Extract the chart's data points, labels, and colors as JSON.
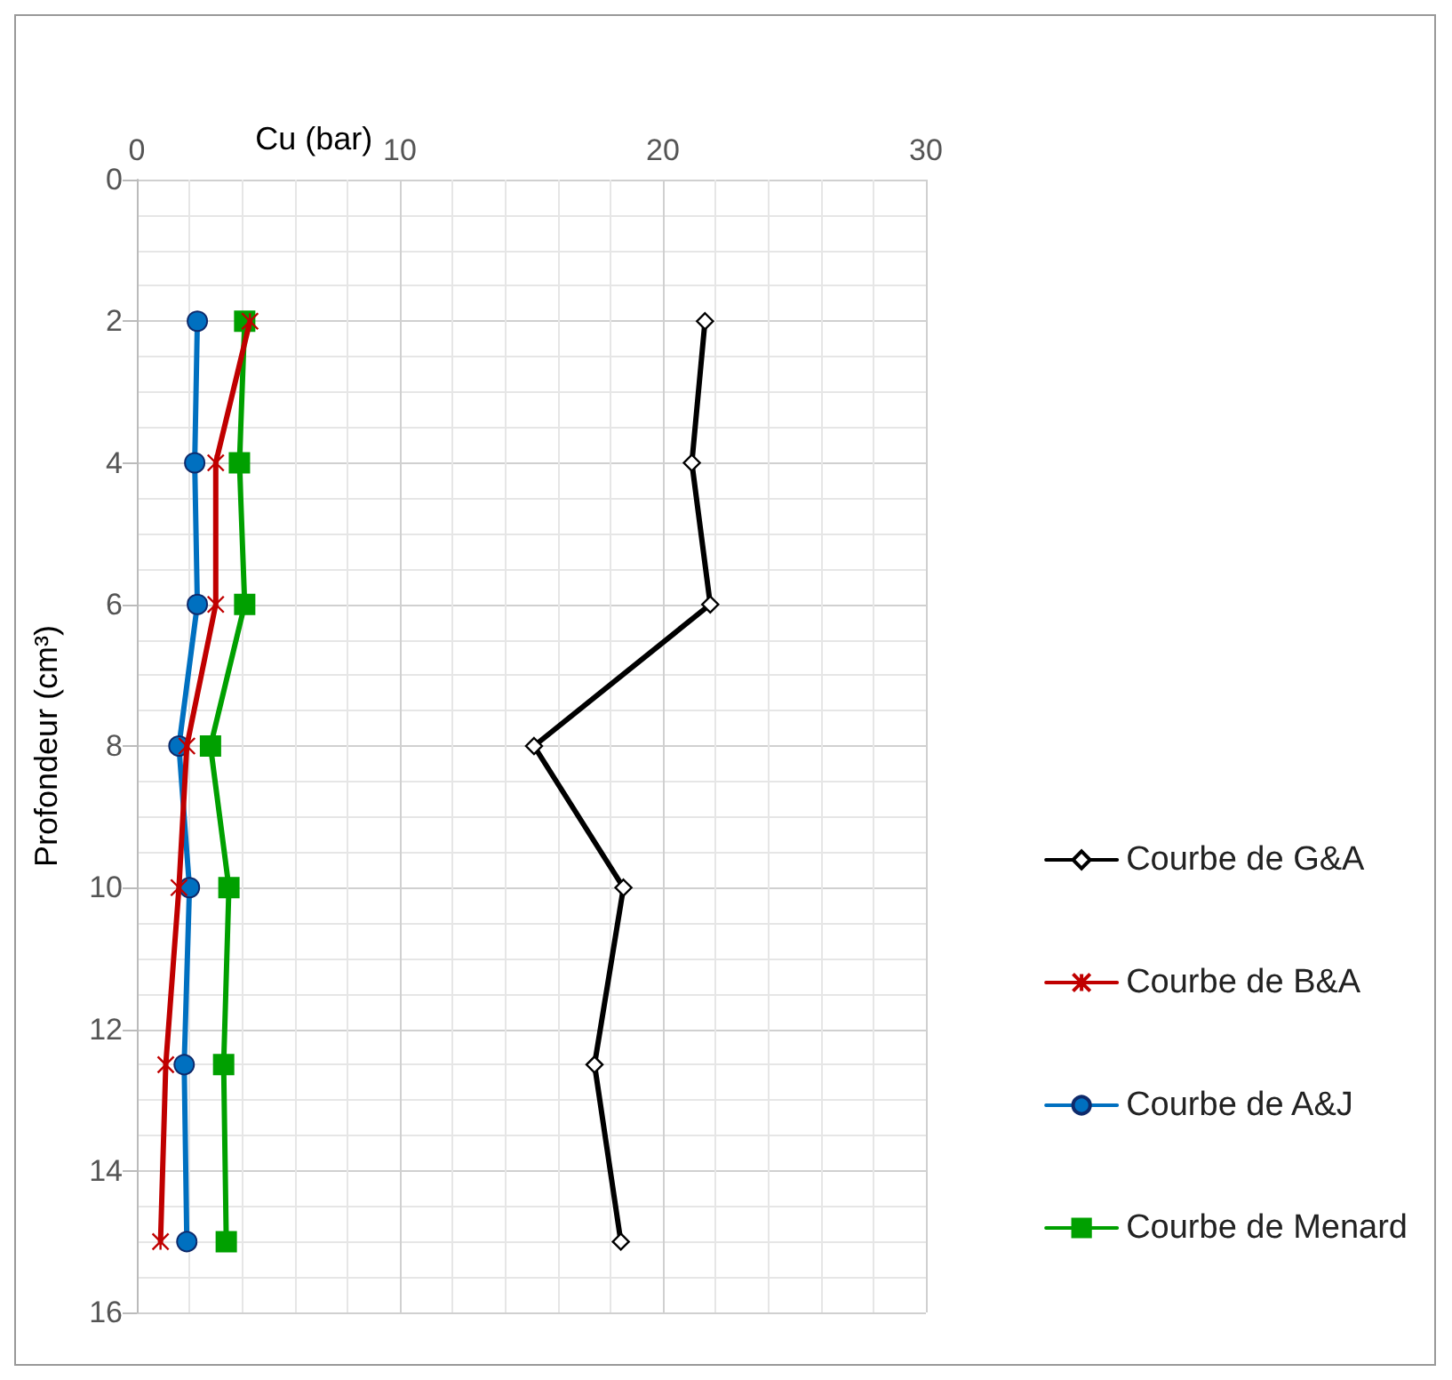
{
  "chart_data": {
    "type": "line",
    "xlabel": "Cu (bar)",
    "ylabel": "Profondeur (cm³)",
    "xlim": [
      0,
      30
    ],
    "xticks": [
      0,
      10,
      20,
      30
    ],
    "ylim": [
      16,
      0
    ],
    "yticks": [
      0,
      2,
      4,
      6,
      8,
      10,
      12,
      14,
      16
    ],
    "grid": true,
    "legend": "right",
    "series": [
      {
        "name": "Courbe de G&A",
        "color": "#000000",
        "marker": "diamond",
        "x": [
          21.6,
          21.1,
          21.8,
          15.1,
          18.5,
          17.4,
          18.4
        ],
        "values": [
          2,
          4,
          6,
          8,
          10,
          12.5,
          15
        ]
      },
      {
        "name": "Courbe de B&A",
        "color": "#c00000",
        "marker": "cross",
        "x": [
          4.3,
          3.0,
          3.0,
          1.9,
          1.6,
          1.1,
          0.9
        ],
        "values": [
          2,
          4,
          6,
          8,
          10,
          12.5,
          15
        ]
      },
      {
        "name": "Courbe de A&J",
        "color": "#0070c0",
        "marker": "circle",
        "x": [
          2.3,
          2.2,
          2.3,
          1.6,
          2.0,
          1.8,
          1.9
        ],
        "values": [
          2,
          4,
          6,
          8,
          10,
          12.5,
          15
        ]
      },
      {
        "name": "Courbe de Menard",
        "color": "#00a000",
        "marker": "square",
        "x": [
          4.1,
          3.9,
          4.1,
          2.8,
          3.5,
          3.3,
          3.4
        ],
        "values": [
          2,
          4,
          6,
          8,
          10,
          12.5,
          15
        ]
      }
    ]
  }
}
